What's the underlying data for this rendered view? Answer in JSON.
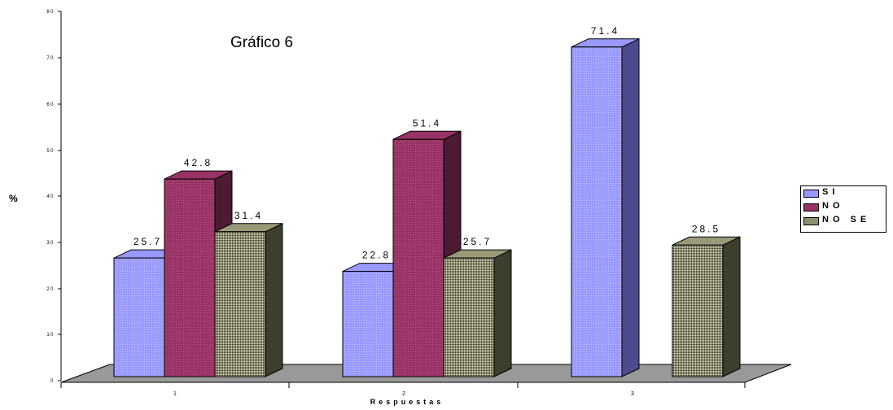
{
  "chart_data": {
    "type": "bar",
    "title": "Gráfico 6",
    "ylabel": "%",
    "xlabel": "Respuestas",
    "categories": [
      "1",
      "2",
      "3"
    ],
    "ylim": [
      0,
      80
    ],
    "yticks": [
      0,
      10,
      20,
      30,
      40,
      50,
      60,
      70,
      80
    ],
    "series": [
      {
        "name": "SI",
        "values": [
          25.7,
          22.8,
          71.4
        ],
        "labels": [
          "25.7",
          "22.8",
          "71.4"
        ],
        "color": "#9999ff",
        "side": "#4b4b8e"
      },
      {
        "name": "NO",
        "values": [
          42.8,
          51.4,
          null
        ],
        "labels": [
          "42.8",
          "51.4",
          ""
        ],
        "color": "#993366",
        "side": "#4d1a33"
      },
      {
        "name": "NO SE",
        "values": [
          31.4,
          25.7,
          28.5
        ],
        "labels": [
          "31.4",
          "25.7",
          "28.5"
        ],
        "color": "#9a9a7a",
        "side": "#3e3e2c"
      }
    ],
    "legend_position": "right",
    "grid": false,
    "floor_color": "#999999"
  }
}
